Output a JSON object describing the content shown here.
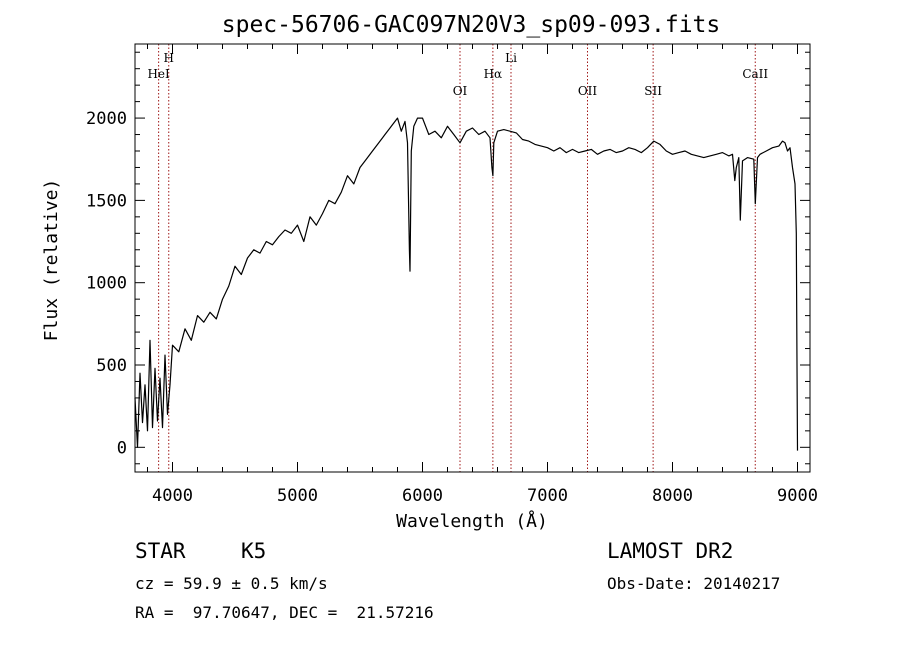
{
  "chart_data": {
    "type": "line",
    "title": "spec-56706-GAC097N20V3_sp09-093.fits",
    "xlabel": "Wavelength (Å)",
    "ylabel": "Flux (relative)",
    "xlim": [
      3700,
      9100
    ],
    "ylim": [
      -150,
      2450
    ],
    "x_ticks": [
      4000,
      5000,
      6000,
      7000,
      8000,
      9000
    ],
    "y_ticks": [
      0,
      500,
      1000,
      1500,
      2000
    ],
    "grid": false,
    "lines": [
      {
        "label": "H",
        "x": 3970,
        "level": 1
      },
      {
        "label": "HeI",
        "x": 3889,
        "level": 2
      },
      {
        "label": "OI",
        "x": 6300,
        "level": 3
      },
      {
        "label": "Hα",
        "x": 6563,
        "level": 2
      },
      {
        "label": "Li",
        "x": 6708,
        "level": 1
      },
      {
        "label": "OII",
        "x": 7320,
        "level": 3
      },
      {
        "label": "SII",
        "x": 7845,
        "level": 3
      },
      {
        "label": "CaII",
        "x": 8662,
        "level": 2
      }
    ],
    "series": [
      {
        "x": [
          3700,
          3720,
          3740,
          3760,
          3780,
          3800,
          3820,
          3840,
          3860,
          3880,
          3900,
          3920,
          3940,
          3960,
          3980,
          4000,
          4050,
          4100,
          4150,
          4200,
          4250,
          4300,
          4350,
          4400,
          4450,
          4500,
          4550,
          4600,
          4650,
          4700,
          4750,
          4800,
          4850,
          4900,
          4950,
          5000,
          5050,
          5100,
          5150,
          5200,
          5250,
          5300,
          5350,
          5400,
          5450,
          5500,
          5550,
          5600,
          5650,
          5700,
          5750,
          5800,
          5830,
          5860,
          5880,
          5895,
          5900,
          5910,
          5930,
          5960,
          6000,
          6050,
          6100,
          6150,
          6200,
          6250,
          6300,
          6350,
          6400,
          6450,
          6500,
          6540,
          6555,
          6563,
          6570,
          6600,
          6650,
          6700,
          6750,
          6800,
          6850,
          6900,
          6950,
          7000,
          7050,
          7100,
          7150,
          7200,
          7250,
          7300,
          7350,
          7400,
          7450,
          7500,
          7550,
          7600,
          7650,
          7700,
          7750,
          7800,
          7850,
          7900,
          7950,
          8000,
          8050,
          8100,
          8150,
          8200,
          8250,
          8300,
          8350,
          8400,
          8450,
          8480,
          8498,
          8510,
          8530,
          8542,
          8560,
          8600,
          8650,
          8662,
          8680,
          8700,
          8750,
          8800,
          8850,
          8880,
          8900,
          8920,
          8940,
          8960,
          8980,
          8990,
          8995,
          9000
        ],
        "y": [
          300,
          0,
          450,
          150,
          380,
          100,
          650,
          120,
          480,
          160,
          420,
          120,
          560,
          200,
          380,
          620,
          580,
          720,
          650,
          800,
          760,
          820,
          780,
          900,
          980,
          1100,
          1050,
          1150,
          1200,
          1180,
          1250,
          1230,
          1280,
          1320,
          1300,
          1350,
          1250,
          1400,
          1350,
          1420,
          1500,
          1480,
          1550,
          1650,
          1600,
          1700,
          1750,
          1800,
          1850,
          1900,
          1950,
          2000,
          1920,
          1980,
          1850,
          1200,
          1070,
          1800,
          1950,
          2000,
          2000,
          1900,
          1920,
          1880,
          1950,
          1900,
          1850,
          1920,
          1940,
          1900,
          1920,
          1880,
          1700,
          1650,
          1850,
          1920,
          1930,
          1920,
          1910,
          1870,
          1860,
          1840,
          1830,
          1820,
          1800,
          1820,
          1790,
          1810,
          1790,
          1800,
          1810,
          1780,
          1800,
          1810,
          1790,
          1800,
          1820,
          1810,
          1790,
          1820,
          1860,
          1840,
          1800,
          1780,
          1790,
          1800,
          1780,
          1770,
          1760,
          1770,
          1780,
          1790,
          1770,
          1780,
          1620,
          1700,
          1760,
          1380,
          1740,
          1760,
          1750,
          1480,
          1760,
          1780,
          1800,
          1820,
          1830,
          1860,
          1850,
          1800,
          1820,
          1700,
          1600,
          1300,
          600,
          -20
        ]
      }
    ]
  },
  "info": {
    "object_class": "STAR",
    "subclass": "K5",
    "survey": "LAMOST DR2",
    "redshift": "cz = 59.9 ± 0.5 km/s",
    "obs_date": "Obs-Date: 20140217",
    "coords": "RA =  97.70647, DEC =  21.57216"
  }
}
